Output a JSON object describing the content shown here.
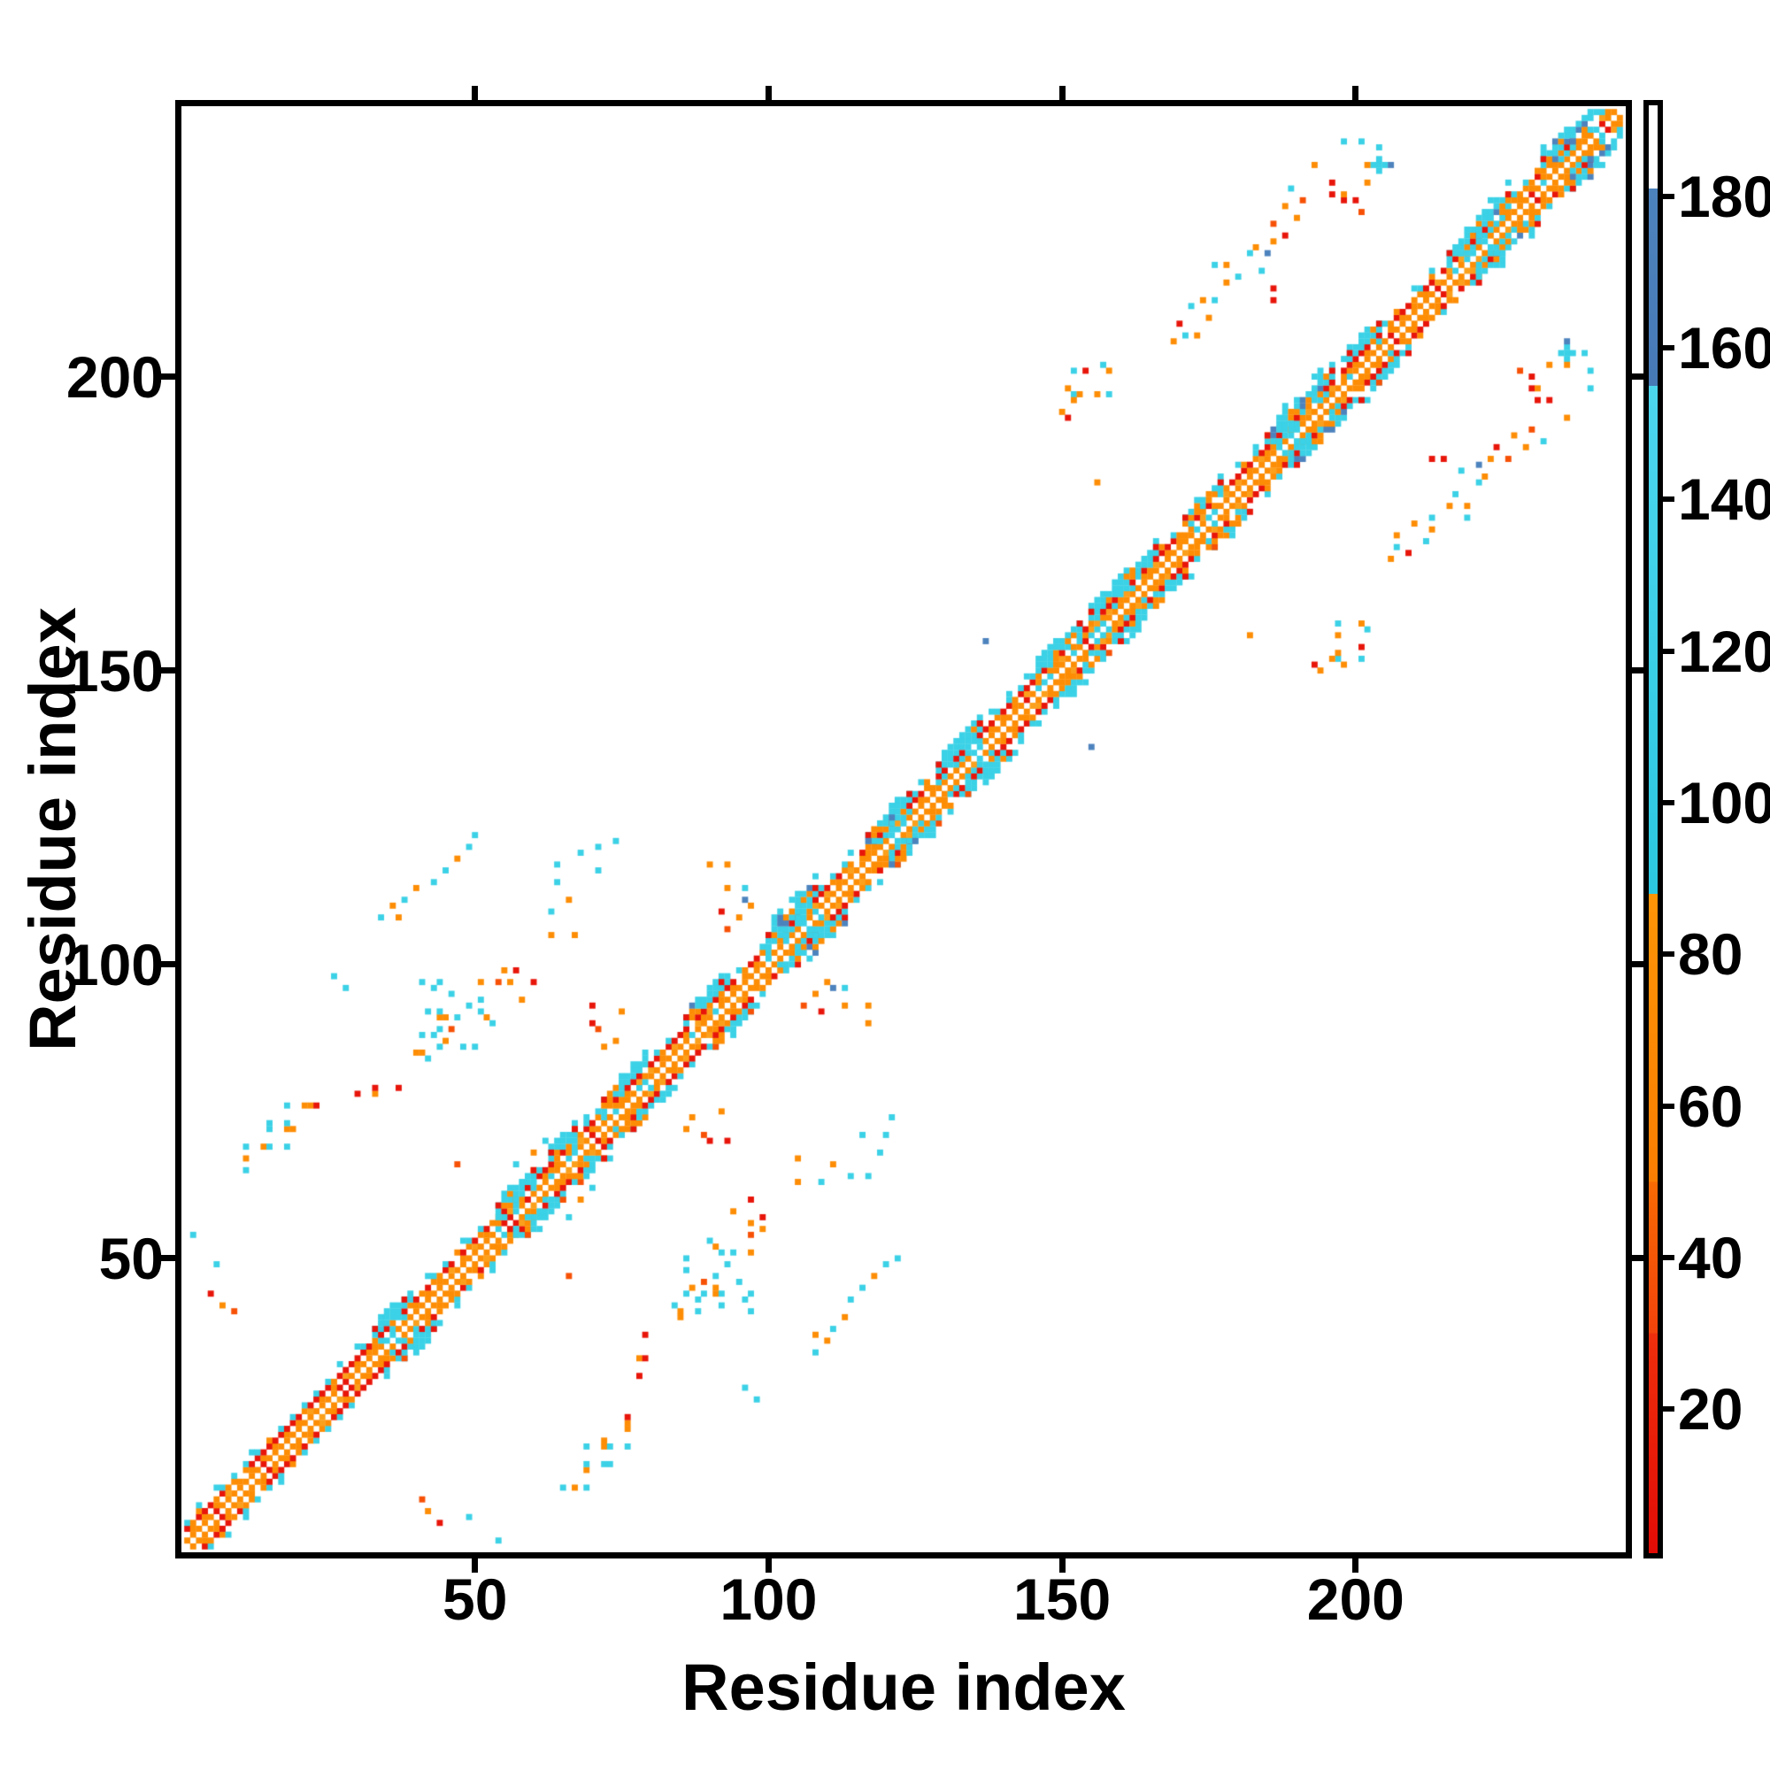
{
  "chart_data": {
    "type": "heatmap",
    "title": "",
    "xlabel": "Residue index",
    "ylabel": "Residue index",
    "xlim": [
      1,
      246
    ],
    "ylim": [
      1,
      246
    ],
    "xticks": [
      50,
      100,
      150,
      200
    ],
    "yticks": [
      50,
      100,
      150,
      200
    ],
    "grid": false,
    "n_residues": 245,
    "seed": 1337,
    "background": "#ffffff",
    "axis_color": "#000000",
    "palette": {
      "r": "#e8150a",
      "s": "#f75106",
      "o": "#fd8d05",
      "a": "#fba01c",
      "c": "#3bd1e6",
      "b": "#4d83bd"
    },
    "colorbar": {
      "position": "right",
      "vmin": 1,
      "vmax": 192,
      "ticks": [
        20,
        40,
        60,
        80,
        100,
        120,
        140,
        160,
        180
      ],
      "segments": [
        {
          "v0": 181,
          "v1": 192,
          "c0": "#ffffff",
          "c1": "#ffffff"
        },
        {
          "v0": 155,
          "v1": 181,
          "c0": "#4679b6",
          "c1": "#4d83bd"
        },
        {
          "v0": 88,
          "v1": 155,
          "c0": "#2cc7e0",
          "c1": "#4cd6ee"
        },
        {
          "v0": 50,
          "v1": 88,
          "c0": "#fa7e02",
          "c1": "#fd9406"
        },
        {
          "v0": 30,
          "v1": 50,
          "c0": "#f2430b",
          "c1": "#f86a03"
        },
        {
          "v0": 1,
          "v1": 30,
          "c0": "#e20c06",
          "c1": "#ee2f0c"
        }
      ]
    },
    "diagonal_band": {
      "offsets": [
        {
          "d": 1,
          "color": "o",
          "fill": "solid"
        },
        {
          "d": 2,
          "color": "o",
          "fill": "checker"
        },
        {
          "d": 3,
          "color": "r",
          "fill": "solid"
        },
        {
          "d": 4,
          "color": "c",
          "fill": "checker"
        },
        {
          "d": 5,
          "color": "c",
          "fill": "sparse"
        }
      ],
      "bulges": [
        [
          33,
          38,
          0
        ],
        [
          54,
          60,
          0
        ],
        [
          63,
          67,
          0
        ],
        [
          72,
          79,
          0
        ],
        [
          86,
          92,
          1
        ],
        [
          100,
          108,
          1
        ],
        [
          117,
          124,
          1
        ],
        [
          129,
          136,
          0
        ],
        [
          146,
          153,
          0
        ],
        [
          155,
          166,
          0
        ],
        [
          171,
          177,
          0
        ],
        [
          185,
          196,
          1
        ],
        [
          199,
          204,
          0
        ],
        [
          216,
          226,
          1
        ],
        [
          232,
          243,
          1
        ]
      ],
      "crosses": [
        [
          57,
          3,
          0
        ],
        [
          105,
          3,
          1
        ],
        [
          121,
          4,
          1
        ],
        [
          189,
          3,
          0
        ],
        [
          221,
          4,
          1
        ],
        [
          237,
          3,
          1
        ]
      ]
    },
    "mirror": true,
    "contacts_upper": [
      [
        5,
        44,
        "r"
      ],
      [
        7,
        42,
        "o"
      ],
      [
        9,
        41,
        "s"
      ],
      [
        2,
        54,
        "c"
      ],
      [
        6,
        49,
        "c"
      ],
      [
        11,
        67,
        "o"
      ],
      [
        11,
        65,
        "c"
      ],
      [
        11,
        69,
        "c"
      ],
      [
        14,
        69,
        "o"
      ],
      [
        15,
        69,
        "c"
      ],
      [
        18,
        69,
        "c"
      ],
      [
        15,
        72,
        "c"
      ],
      [
        15,
        73,
        "c"
      ],
      [
        18,
        72,
        "o"
      ],
      [
        19,
        72,
        "o"
      ],
      [
        18,
        73,
        "c"
      ],
      [
        21,
        76,
        "o"
      ],
      [
        22,
        76,
        "o"
      ],
      [
        23,
        76,
        "r"
      ],
      [
        18,
        76,
        "c"
      ],
      [
        30,
        78,
        "r"
      ],
      [
        33,
        78,
        "o"
      ],
      [
        33,
        79,
        "r"
      ],
      [
        37,
        79,
        "r"
      ],
      [
        40,
        85,
        "o"
      ],
      [
        41,
        85,
        "o"
      ],
      [
        42,
        84,
        "c"
      ],
      [
        44,
        86,
        "c"
      ],
      [
        48,
        86,
        "c"
      ],
      [
        50,
        86,
        "c"
      ],
      [
        45,
        87,
        "o"
      ],
      [
        43,
        88,
        "c"
      ],
      [
        41,
        88,
        "c"
      ],
      [
        44,
        89,
        "c"
      ],
      [
        46,
        89,
        "s"
      ],
      [
        44,
        91,
        "o"
      ],
      [
        45,
        91,
        "o"
      ],
      [
        47,
        91,
        "c"
      ],
      [
        42,
        92,
        "c"
      ],
      [
        44,
        92,
        "c"
      ],
      [
        49,
        93,
        "c"
      ],
      [
        46,
        95,
        "c"
      ],
      [
        43,
        96,
        "c"
      ],
      [
        44,
        97,
        "c"
      ],
      [
        41,
        97,
        "c"
      ],
      [
        26,
        98,
        "c"
      ],
      [
        28,
        96,
        "c"
      ],
      [
        55,
        99,
        "o"
      ],
      [
        57,
        99,
        "r"
      ],
      [
        51,
        97,
        "o"
      ],
      [
        54,
        97,
        "s"
      ],
      [
        56,
        97,
        "o"
      ],
      [
        60,
        97,
        "r"
      ],
      [
        51,
        94,
        "c"
      ],
      [
        51,
        92,
        "c"
      ],
      [
        52,
        91,
        "o"
      ],
      [
        58,
        94,
        "o"
      ],
      [
        53,
        90,
        "c"
      ],
      [
        57,
        66,
        "c"
      ],
      [
        60,
        68,
        "o"
      ],
      [
        62,
        70,
        "c"
      ],
      [
        34,
        108,
        "c"
      ],
      [
        37,
        108,
        "o"
      ],
      [
        36,
        110,
        "o"
      ],
      [
        38,
        111,
        "c"
      ],
      [
        40,
        113,
        "o"
      ],
      [
        43,
        114,
        "c"
      ],
      [
        45,
        116,
        "c"
      ],
      [
        47,
        118,
        "o"
      ],
      [
        49,
        120,
        "c"
      ],
      [
        50,
        122,
        "c"
      ],
      [
        63,
        105,
        "o"
      ],
      [
        63,
        109,
        "c"
      ],
      [
        64,
        114,
        "c"
      ],
      [
        64,
        117,
        "c"
      ],
      [
        66,
        111,
        "o"
      ],
      [
        67,
        105,
        "o"
      ],
      [
        68,
        119,
        "c"
      ],
      [
        71,
        116,
        "c"
      ],
      [
        71,
        120,
        "c"
      ],
      [
        74,
        121,
        "c"
      ],
      [
        90,
        117,
        "o"
      ],
      [
        93,
        117,
        "o"
      ],
      [
        93,
        113,
        "o"
      ],
      [
        96,
        113,
        "c"
      ],
      [
        96,
        111,
        "b"
      ],
      [
        97,
        110,
        "o"
      ],
      [
        93,
        106,
        "s"
      ],
      [
        95,
        108,
        "o"
      ],
      [
        92,
        109,
        "r"
      ],
      [
        47,
        66,
        "s"
      ],
      [
        70,
        90,
        "r"
      ],
      [
        70,
        93,
        "r"
      ],
      [
        74,
        87,
        "o"
      ],
      [
        71,
        89,
        "s"
      ],
      [
        72,
        86,
        "o"
      ],
      [
        75,
        92,
        "o"
      ],
      [
        137,
        155,
        "b"
      ],
      [
        156,
        182,
        "o"
      ],
      [
        152,
        201,
        "c"
      ],
      [
        154,
        201,
        "r"
      ],
      [
        157,
        202,
        "c"
      ],
      [
        158,
        201,
        "o"
      ],
      [
        151,
        198,
        "o"
      ],
      [
        152,
        197,
        "c"
      ],
      [
        153,
        197,
        "o"
      ],
      [
        156,
        197,
        "o"
      ],
      [
        158,
        197,
        "c"
      ],
      [
        152,
        196,
        "o"
      ],
      [
        150,
        194,
        "o"
      ],
      [
        151,
        193,
        "r"
      ],
      [
        169,
        206,
        "o"
      ],
      [
        170,
        209,
        "r"
      ],
      [
        171,
        207,
        "c"
      ],
      [
        173,
        207,
        "o"
      ],
      [
        175,
        210,
        "o"
      ],
      [
        172,
        212,
        "c"
      ],
      [
        174,
        213,
        "o"
      ],
      [
        176,
        213,
        "c"
      ],
      [
        178,
        216,
        "o"
      ],
      [
        180,
        217,
        "c"
      ],
      [
        176,
        219,
        "c"
      ],
      [
        178,
        219,
        "o"
      ],
      [
        182,
        221,
        "c"
      ],
      [
        183,
        222,
        "o"
      ],
      [
        186,
        213,
        "r"
      ],
      [
        186,
        215,
        "r"
      ],
      [
        184,
        218,
        "c"
      ],
      [
        185,
        221,
        "b"
      ],
      [
        186,
        223,
        "o"
      ],
      [
        188,
        224,
        "r"
      ],
      [
        186,
        226,
        "s"
      ],
      [
        190,
        227,
        "o"
      ],
      [
        188,
        229,
        "o"
      ],
      [
        191,
        230,
        "s"
      ],
      [
        189,
        232,
        "c"
      ],
      [
        196,
        231,
        "r"
      ],
      [
        196,
        233,
        "r"
      ],
      [
        193,
        236,
        "o"
      ],
      [
        198,
        230,
        "r"
      ],
      [
        200,
        230,
        "r"
      ],
      [
        198,
        231,
        "o"
      ],
      [
        201,
        228,
        "s"
      ],
      [
        202,
        233,
        "o"
      ],
      [
        204,
        236,
        "c"
      ],
      [
        204,
        235,
        "c"
      ],
      [
        204,
        237,
        "c"
      ],
      [
        203,
        236,
        "c"
      ],
      [
        205,
        236,
        "c"
      ],
      [
        206,
        236,
        "b"
      ],
      [
        202,
        236,
        "o"
      ],
      [
        204,
        239,
        "c"
      ],
      [
        198,
        240,
        "c"
      ],
      [
        201,
        240,
        "c"
      ]
    ]
  }
}
